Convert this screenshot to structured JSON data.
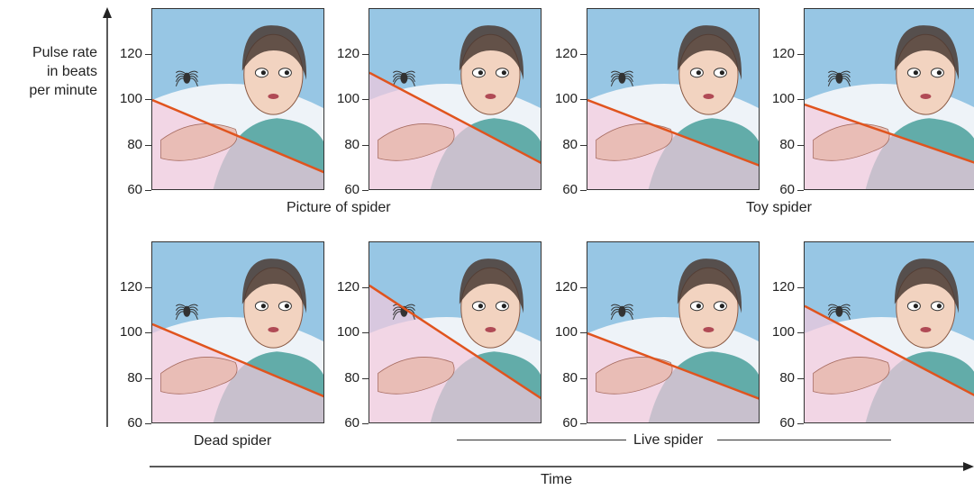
{
  "y_axis": {
    "label_lines": [
      "Pulse rate",
      "in beats",
      "per minute"
    ]
  },
  "x_axis": {
    "label": "Time"
  },
  "captions": {
    "picture": "Picture of spider",
    "toy": "Toy spider",
    "dead": "Dead spider",
    "live": "Live spider"
  },
  "chart_data": {
    "type": "line",
    "ylim": [
      60,
      140
    ],
    "yticks": [
      60,
      80,
      100,
      120
    ],
    "ylabel": "Pulse rate in beats per minute",
    "xlabel": "Time",
    "panels": [
      {
        "row": 1,
        "col": 1,
        "caption": "",
        "start": 100,
        "end": 68
      },
      {
        "row": 1,
        "col": 2,
        "caption": "Picture of spider",
        "start": 112,
        "end": 72
      },
      {
        "row": 1,
        "col": 3,
        "caption": "",
        "start": 100,
        "end": 71
      },
      {
        "row": 1,
        "col": 4,
        "caption": "Toy spider",
        "start": 98,
        "end": 72
      },
      {
        "row": 2,
        "col": 1,
        "caption": "Dead spider",
        "start": 104,
        "end": 72
      },
      {
        "row": 2,
        "col": 2,
        "caption": "",
        "start": 121,
        "end": 71
      },
      {
        "row": 2,
        "col": 3,
        "caption": "",
        "start": 100,
        "end": 71
      },
      {
        "row": 2,
        "col": 4,
        "caption": "",
        "start": 112,
        "end": 72
      }
    ],
    "group_captions": [
      {
        "row": 1,
        "cols": [
          1,
          2
        ],
        "label": "Picture of spider"
      },
      {
        "row": 1,
        "cols": [
          3,
          4
        ],
        "label": "Toy spider"
      },
      {
        "row": 2,
        "cols": [
          1
        ],
        "label": "Dead spider"
      },
      {
        "row": 2,
        "cols": [
          2,
          3,
          4
        ],
        "label": "Live spider"
      }
    ]
  },
  "colors": {
    "line": "#e0541e",
    "below": "#f4c9dd",
    "sky": "#7ab7dd",
    "shirt": "#3f9a95"
  }
}
